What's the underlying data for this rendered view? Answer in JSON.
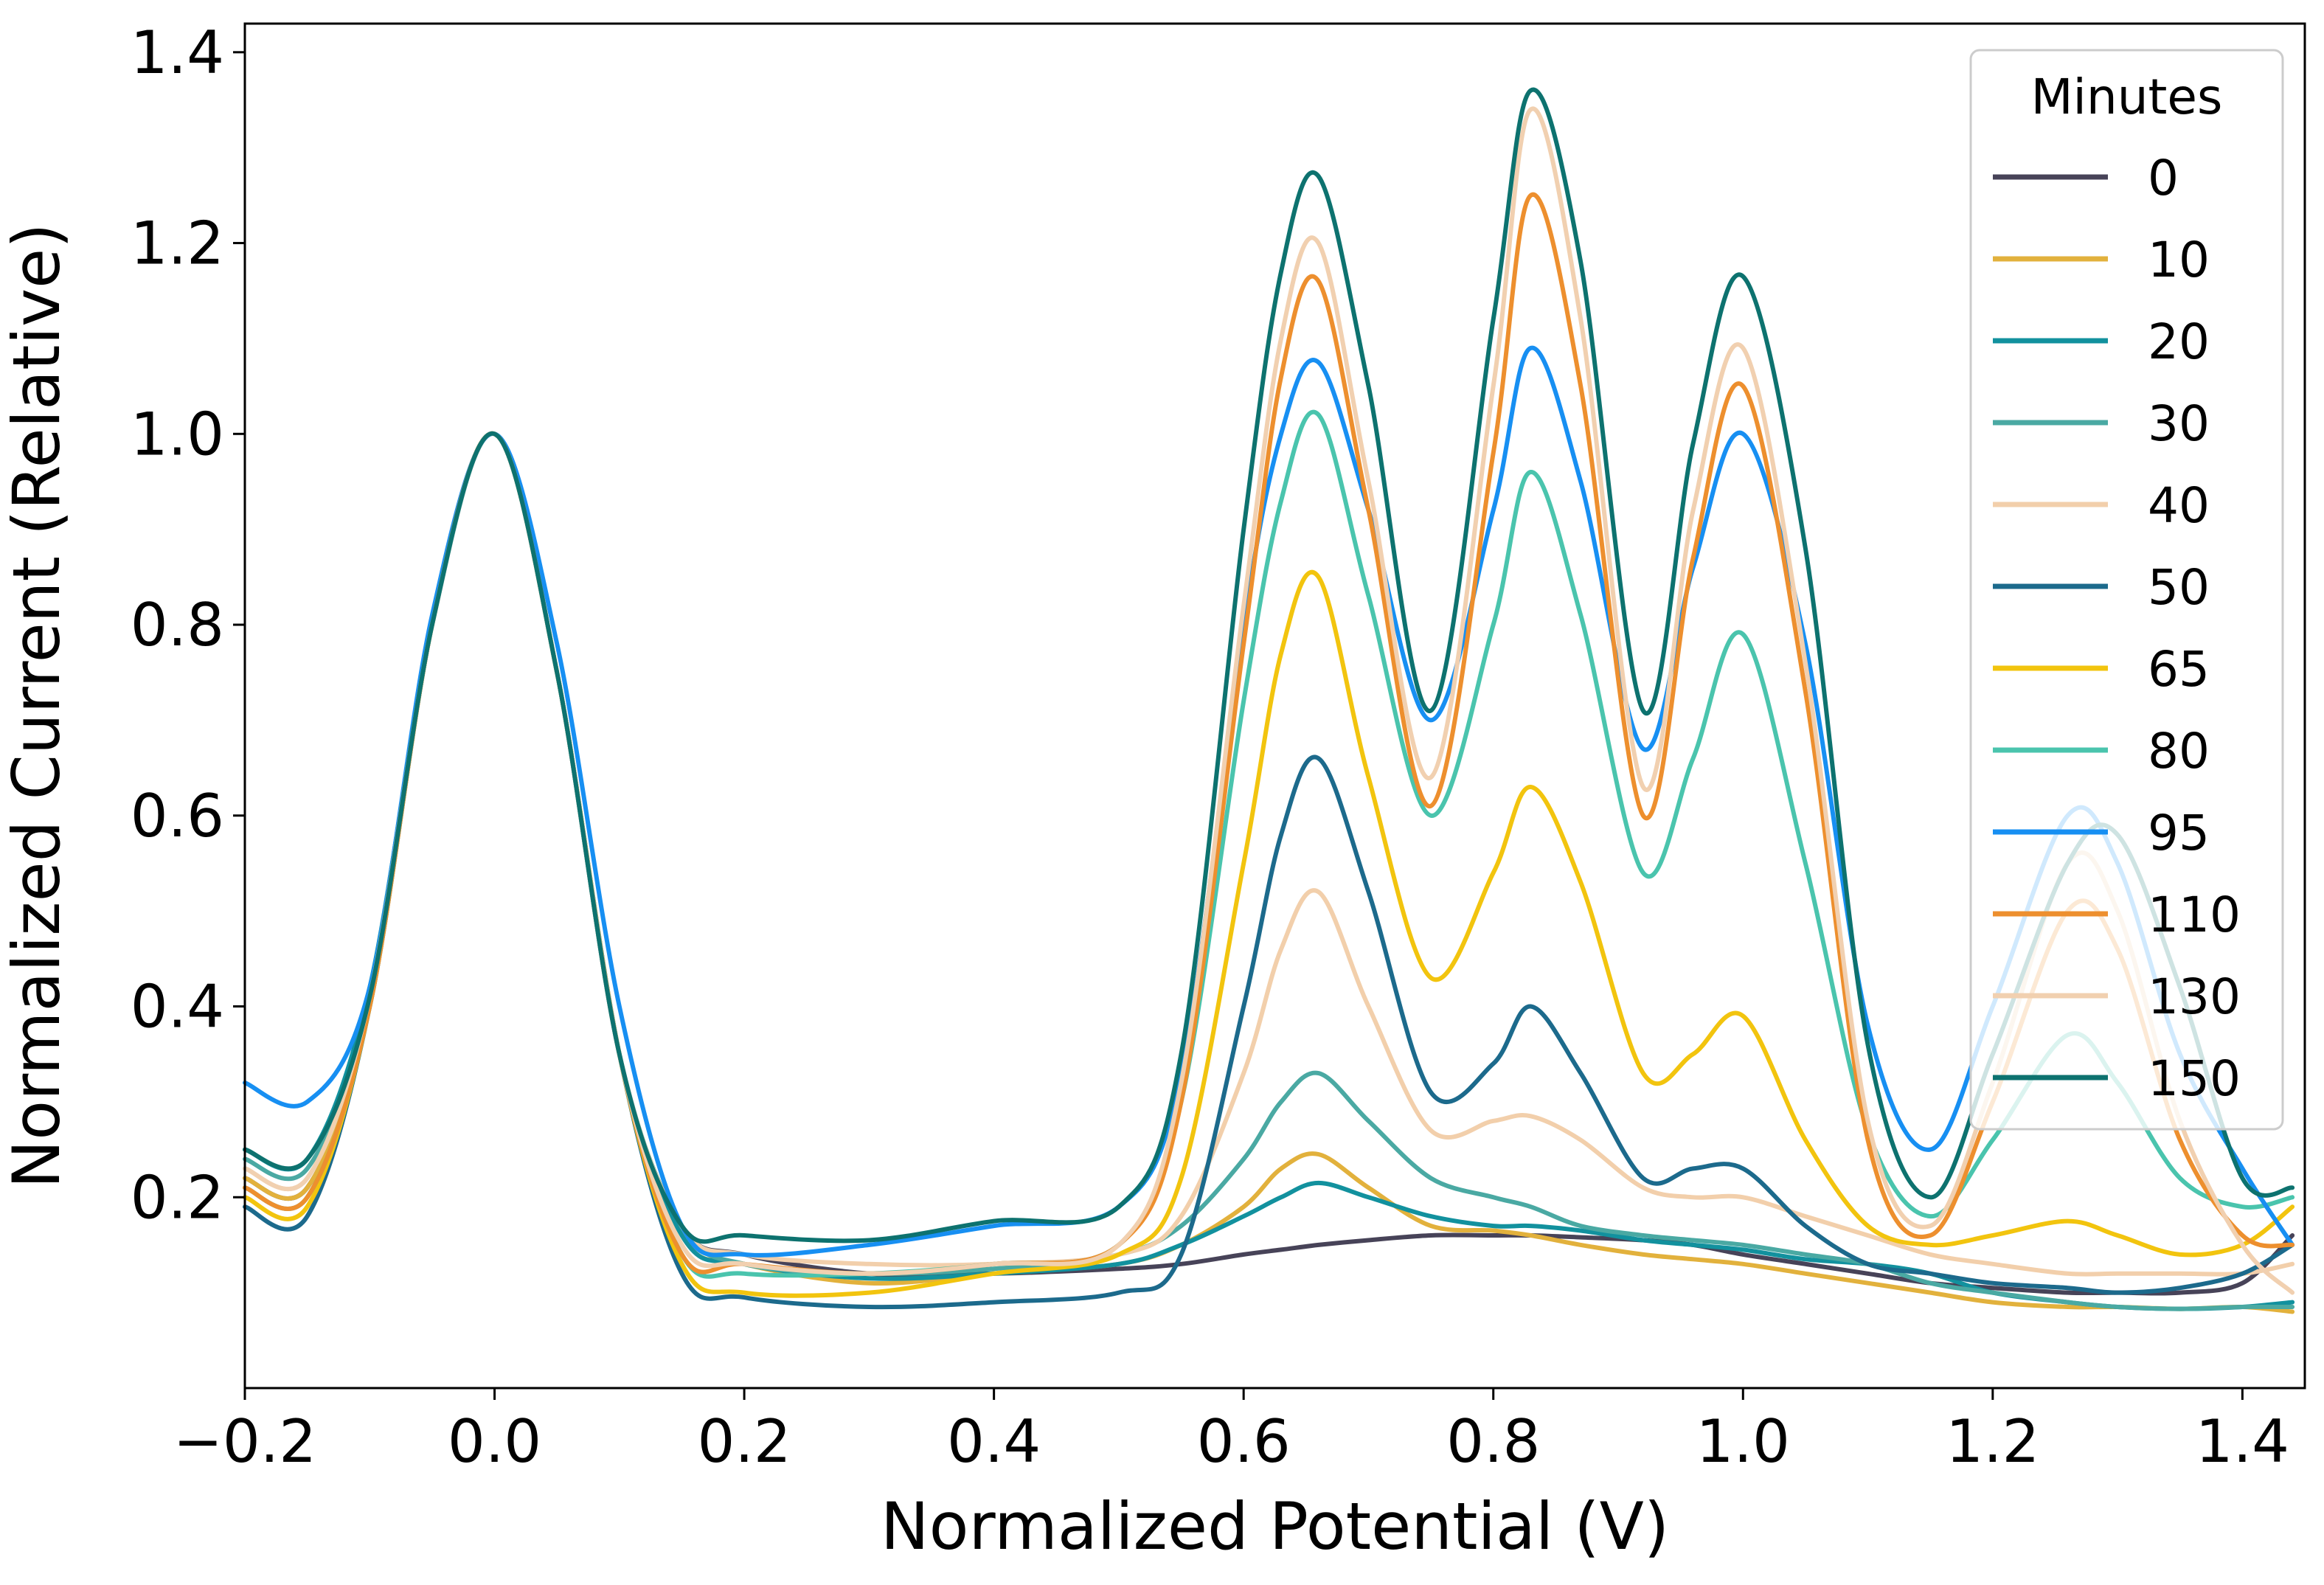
{
  "chart_data": {
    "type": "line",
    "title": "",
    "xlabel": "Normalized Potential (V)",
    "ylabel": "Normalized Current (Relative)",
    "xlim": [
      -0.2,
      1.45
    ],
    "ylim": [
      0.0,
      1.43
    ],
    "xticks": [
      -0.2,
      0.0,
      0.2,
      0.4,
      0.6,
      0.8,
      1.0,
      1.2,
      1.4
    ],
    "xtick_labels": [
      "−0.2",
      "0.0",
      "0.2",
      "0.4",
      "0.6",
      "0.8",
      "1.0",
      "1.2",
      "1.4"
    ],
    "yticks": [
      0.2,
      0.4,
      0.6,
      0.8,
      1.0,
      1.2,
      1.4
    ],
    "ytick_labels": [
      "0.2",
      "0.4",
      "0.6",
      "0.8",
      "1.0",
      "1.2",
      "1.4"
    ],
    "grid": false,
    "legend": {
      "title": "Minutes",
      "position": "top-right"
    },
    "x": [
      -0.2,
      -0.15,
      -0.1,
      -0.05,
      0.0,
      0.05,
      0.1,
      0.15,
      0.2,
      0.3,
      0.4,
      0.5,
      0.55,
      0.6,
      0.63,
      0.66,
      0.7,
      0.75,
      0.8,
      0.83,
      0.87,
      0.92,
      0.96,
      1.0,
      1.05,
      1.1,
      1.15,
      1.2,
      1.26,
      1.3,
      1.35,
      1.4,
      1.44
    ],
    "series": [
      {
        "name": "0",
        "color": "#474358",
        "values": [
          0.22,
          0.21,
          0.4,
          0.8,
          1.0,
          0.75,
          0.35,
          0.17,
          0.14,
          0.12,
          0.12,
          0.125,
          0.13,
          0.14,
          0.145,
          0.15,
          0.155,
          0.16,
          0.16,
          0.16,
          0.158,
          0.155,
          0.15,
          0.14,
          0.13,
          0.12,
          0.11,
          0.105,
          0.1,
          0.1,
          0.1,
          0.11,
          0.16
        ]
      },
      {
        "name": "10",
        "color": "#e2b13c",
        "values": [
          0.22,
          0.21,
          0.4,
          0.8,
          1.0,
          0.75,
          0.35,
          0.16,
          0.13,
          0.11,
          0.12,
          0.13,
          0.15,
          0.19,
          0.23,
          0.245,
          0.21,
          0.17,
          0.165,
          0.16,
          0.15,
          0.14,
          0.135,
          0.13,
          0.12,
          0.11,
          0.1,
          0.09,
          0.085,
          0.085,
          0.083,
          0.085,
          0.08
        ]
      },
      {
        "name": "20",
        "color": "#12919e",
        "values": [
          0.25,
          0.24,
          0.42,
          0.8,
          1.0,
          0.75,
          0.35,
          0.16,
          0.13,
          0.115,
          0.12,
          0.13,
          0.15,
          0.18,
          0.2,
          0.215,
          0.2,
          0.18,
          0.17,
          0.17,
          0.165,
          0.155,
          0.15,
          0.145,
          0.135,
          0.13,
          0.12,
          0.1,
          0.09,
          0.085,
          0.083,
          0.085,
          0.09
        ]
      },
      {
        "name": "30",
        "color": "#4aa9a3",
        "values": [
          0.24,
          0.23,
          0.41,
          0.8,
          1.0,
          0.75,
          0.35,
          0.17,
          0.13,
          0.12,
          0.125,
          0.14,
          0.17,
          0.24,
          0.3,
          0.33,
          0.28,
          0.22,
          0.2,
          0.19,
          0.17,
          0.16,
          0.155,
          0.15,
          0.14,
          0.13,
          0.11,
          0.1,
          0.09,
          0.085,
          0.083,
          0.085,
          0.085
        ]
      },
      {
        "name": "40",
        "color": "#f2cfab",
        "values": [
          0.23,
          0.22,
          0.41,
          0.8,
          1.0,
          0.75,
          0.35,
          0.17,
          0.14,
          0.13,
          0.13,
          0.14,
          0.18,
          0.33,
          0.46,
          0.52,
          0.4,
          0.27,
          0.28,
          0.285,
          0.26,
          0.21,
          0.2,
          0.2,
          0.18,
          0.16,
          0.14,
          0.13,
          0.12,
          0.12,
          0.12,
          0.12,
          0.13
        ]
      },
      {
        "name": "50",
        "color": "#1c6a8c",
        "values": [
          0.19,
          0.18,
          0.4,
          0.8,
          1.0,
          0.75,
          0.35,
          0.12,
          0.095,
          0.085,
          0.09,
          0.1,
          0.14,
          0.4,
          0.58,
          0.66,
          0.52,
          0.31,
          0.34,
          0.4,
          0.33,
          0.22,
          0.23,
          0.23,
          0.17,
          0.13,
          0.12,
          0.11,
          0.105,
          0.1,
          0.105,
          0.12,
          0.15
        ]
      },
      {
        "name": "65",
        "color": "#f2c40e",
        "values": [
          0.2,
          0.19,
          0.4,
          0.8,
          1.0,
          0.75,
          0.35,
          0.13,
          0.1,
          0.1,
          0.12,
          0.14,
          0.22,
          0.55,
          0.77,
          0.85,
          0.64,
          0.43,
          0.54,
          0.63,
          0.53,
          0.33,
          0.35,
          0.39,
          0.26,
          0.17,
          0.15,
          0.16,
          0.175,
          0.16,
          0.14,
          0.15,
          0.19
        ]
      },
      {
        "name": "80",
        "color": "#4ac4ad",
        "values": [
          0.21,
          0.2,
          0.4,
          0.8,
          1.0,
          0.75,
          0.35,
          0.14,
          0.12,
          0.12,
          0.13,
          0.15,
          0.3,
          0.72,
          0.93,
          1.02,
          0.83,
          0.6,
          0.8,
          0.96,
          0.81,
          0.54,
          0.66,
          0.79,
          0.55,
          0.27,
          0.18,
          0.26,
          0.37,
          0.32,
          0.22,
          0.19,
          0.2
        ]
      },
      {
        "name": "95",
        "color": "#178ff2",
        "values": [
          0.32,
          0.3,
          0.42,
          0.81,
          1.0,
          0.78,
          0.4,
          0.17,
          0.14,
          0.15,
          0.17,
          0.19,
          0.33,
          0.8,
          1.0,
          1.075,
          0.92,
          0.7,
          0.92,
          1.09,
          0.95,
          0.67,
          0.86,
          1.0,
          0.78,
          0.38,
          0.25,
          0.4,
          0.6,
          0.55,
          0.35,
          0.23,
          0.15
        ]
      },
      {
        "name": "110",
        "color": "#ed8f2e",
        "values": [
          0.21,
          0.2,
          0.4,
          0.8,
          1.0,
          0.75,
          0.35,
          0.14,
          0.13,
          0.12,
          0.13,
          0.15,
          0.3,
          0.78,
          1.06,
          1.16,
          0.92,
          0.61,
          0.98,
          1.25,
          1.05,
          0.6,
          0.87,
          1.05,
          0.73,
          0.26,
          0.16,
          0.3,
          0.5,
          0.46,
          0.26,
          0.16,
          0.15
        ]
      },
      {
        "name": "130",
        "color": "#f1d0b0",
        "values": [
          0.23,
          0.22,
          0.41,
          0.8,
          1.0,
          0.75,
          0.35,
          0.15,
          0.13,
          0.12,
          0.13,
          0.15,
          0.32,
          0.82,
          1.1,
          1.2,
          0.95,
          0.64,
          1.05,
          1.34,
          1.12,
          0.63,
          0.92,
          1.09,
          0.76,
          0.28,
          0.17,
          0.32,
          0.55,
          0.5,
          0.28,
          0.15,
          0.1
        ]
      },
      {
        "name": "150",
        "color": "#0d726f",
        "values": [
          0.25,
          0.24,
          0.41,
          0.8,
          1.0,
          0.75,
          0.35,
          0.17,
          0.16,
          0.155,
          0.175,
          0.19,
          0.35,
          0.9,
          1.17,
          1.27,
          1.05,
          0.71,
          1.12,
          1.36,
          1.18,
          0.71,
          0.99,
          1.165,
          0.88,
          0.36,
          0.2,
          0.35,
          0.55,
          0.58,
          0.42,
          0.22,
          0.21
        ]
      }
    ]
  }
}
